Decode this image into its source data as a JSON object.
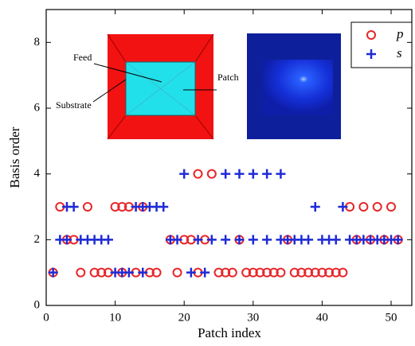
{
  "chart_data": {
    "type": "scatter",
    "xlabel": "Patch index",
    "ylabel": "Basis order",
    "xlim": [
      0,
      53
    ],
    "ylim": [
      0,
      9
    ],
    "xticks": [
      0,
      10,
      20,
      30,
      40,
      50
    ],
    "yticks": [
      0,
      2,
      4,
      6,
      8
    ],
    "legend": "upper right",
    "annotations": [
      "Feed",
      "Substrate",
      "Patch"
    ],
    "series": [
      {
        "name": "p",
        "color": "#e8262a",
        "x": [
          1,
          5,
          7,
          8,
          9,
          11,
          13,
          15,
          16,
          19,
          22,
          25,
          26,
          27,
          29,
          30,
          31,
          32,
          33,
          34,
          36,
          37,
          38,
          39,
          40,
          41,
          42,
          43,
          3,
          4,
          18,
          20,
          21,
          23,
          28,
          35,
          45,
          47,
          49,
          51,
          2,
          6,
          10,
          11,
          12,
          14,
          44,
          46,
          48,
          50,
          22,
          24
        ],
        "values": [
          1,
          1,
          1,
          1,
          1,
          1,
          1,
          1,
          1,
          1,
          1,
          1,
          1,
          1,
          1,
          1,
          1,
          1,
          1,
          1,
          1,
          1,
          1,
          1,
          1,
          1,
          1,
          1,
          2,
          2,
          2,
          2,
          2,
          2,
          2,
          2,
          2,
          2,
          2,
          2,
          3,
          3,
          3,
          3,
          3,
          3,
          3,
          3,
          3,
          3,
          4,
          4
        ]
      },
      {
        "name": "s",
        "color": "#1f2bd6",
        "x": [
          1,
          10,
          11,
          12,
          14,
          21,
          23,
          2,
          3,
          5,
          6,
          7,
          8,
          9,
          18,
          19,
          22,
          24,
          26,
          28,
          30,
          32,
          34,
          35,
          36,
          37,
          38,
          40,
          41,
          42,
          44,
          45,
          46,
          47,
          48,
          49,
          50,
          51,
          3,
          4,
          13,
          14,
          15,
          16,
          17,
          39,
          43,
          20,
          26,
          28,
          30,
          32,
          34
        ],
        "values": [
          1,
          1,
          1,
          1,
          1,
          1,
          1,
          2,
          2,
          2,
          2,
          2,
          2,
          2,
          2,
          2,
          2,
          2,
          2,
          2,
          2,
          2,
          2,
          2,
          2,
          2,
          2,
          2,
          2,
          2,
          2,
          2,
          2,
          2,
          2,
          2,
          2,
          2,
          3,
          3,
          3,
          3,
          3,
          3,
          3,
          3,
          3,
          4,
          4,
          4,
          4,
          4,
          4
        ]
      }
    ]
  }
}
